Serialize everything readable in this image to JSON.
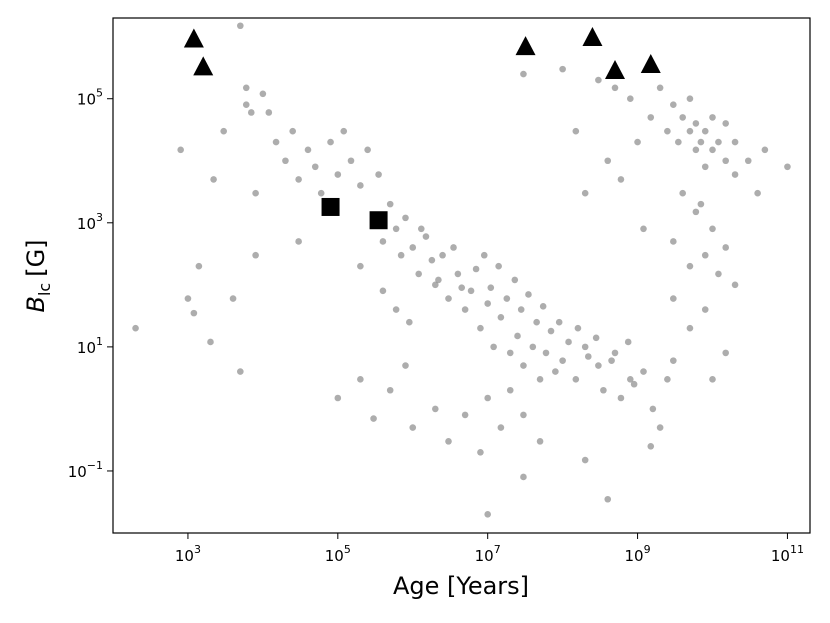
{
  "chart_data": {
    "type": "scatter",
    "title": "",
    "xlabel": "Age [Years]",
    "ylabel": {
      "main": "B",
      "sub": "lc",
      "unit": "[G]"
    },
    "xscale": "log",
    "yscale": "log",
    "xlim": [
      100.0,
      200000000000.0
    ],
    "ylim": [
      0.01,
      2000000.0
    ],
    "xticks": [
      {
        "value": 1000.0,
        "base": "10",
        "exp": "3"
      },
      {
        "value": 100000.0,
        "base": "10",
        "exp": "5"
      },
      {
        "value": 10000000.0,
        "base": "10",
        "exp": "7"
      },
      {
        "value": 1000000000.0,
        "base": "10",
        "exp": "9"
      },
      {
        "value": 100000000000.0,
        "base": "10",
        "exp": "11"
      }
    ],
    "yticks": [
      {
        "value": 0.1,
        "base": "10",
        "exp": "−1"
      },
      {
        "value": 10.0,
        "base": "10",
        "exp": "1"
      },
      {
        "value": 1000.0,
        "base": "10",
        "exp": "3"
      },
      {
        "value": 100000.0,
        "base": "10",
        "exp": "5"
      }
    ],
    "grid": false,
    "legend": "none",
    "colors": {
      "points": "#8a8a8a",
      "markers": "#000000"
    },
    "series": [
      {
        "marker": "circle",
        "color": "#8a8a8a",
        "points": [
          [
            200.0,
            20
          ],
          [
            800.0,
            15000.0
          ],
          [
            1000.0,
            60
          ],
          [
            1400.0,
            200
          ],
          [
            1200.0,
            35
          ],
          [
            2000.0,
            12
          ],
          [
            2200.0,
            5000.0
          ],
          [
            3000.0,
            30000.0
          ],
          [
            4000.0,
            60
          ],
          [
            5000.0,
            4
          ],
          [
            5000.0,
            1500000.0
          ],
          [
            6000.0,
            80000.0
          ],
          [
            6000.0,
            150000.0
          ],
          [
            7000.0,
            60000.0
          ],
          [
            8000.0,
            3000.0
          ],
          [
            8000.0,
            300
          ],
          [
            10000.0,
            120000.0
          ],
          [
            12000.0,
            60000.0
          ],
          [
            15000.0,
            20000.0
          ],
          [
            20000.0,
            10000.0
          ],
          [
            25000.0,
            30000.0
          ],
          [
            30000.0,
            5000.0
          ],
          [
            30000.0,
            500
          ],
          [
            40000.0,
            15000.0
          ],
          [
            50000.0,
            8000.0
          ],
          [
            60000.0,
            3000.0
          ],
          [
            80000.0,
            20000.0
          ],
          [
            100000.0,
            6000.0
          ],
          [
            120000.0,
            30000.0
          ],
          [
            150000.0,
            10000.0
          ],
          [
            200000.0,
            4000.0
          ],
          [
            250000.0,
            15000.0
          ],
          [
            300000.0,
            1000.0
          ],
          [
            350000.0,
            6000.0
          ],
          [
            400000.0,
            500
          ],
          [
            500000.0,
            2000.0
          ],
          [
            600000.0,
            800
          ],
          [
            700000.0,
            300
          ],
          [
            800000.0,
            1200.0
          ],
          [
            1000000.0,
            400
          ],
          [
            1200000.0,
            150
          ],
          [
            1500000.0,
            600
          ],
          [
            2000000.0,
            100
          ],
          [
            2500000.0,
            300
          ],
          [
            3000000.0,
            60
          ],
          [
            4000000.0,
            150
          ],
          [
            5000000.0,
            40
          ],
          [
            6000000.0,
            80
          ],
          [
            8000000.0,
            20
          ],
          [
            10000000.0,
            50
          ],
          [
            12000000.0,
            10
          ],
          [
            15000000.0,
            30
          ],
          [
            20000000.0,
            8
          ],
          [
            25000000.0,
            15
          ],
          [
            30000000.0,
            5
          ],
          [
            40000000.0,
            10
          ],
          [
            50000000.0,
            3
          ],
          [
            60000000.0,
            8
          ],
          [
            80000000.0,
            4
          ],
          [
            100000000.0,
            6
          ],
          [
            150000000.0,
            3
          ],
          [
            200000000.0,
            10
          ],
          [
            300000000.0,
            5
          ],
          [
            500000000.0,
            8
          ],
          [
            800000000.0,
            3
          ],
          [
            100000.0,
            1.5
          ],
          [
            200000.0,
            3
          ],
          [
            300000.0,
            0.7
          ],
          [
            500000.0,
            2
          ],
          [
            800000.0,
            5
          ],
          [
            1000000.0,
            0.5
          ],
          [
            2000000.0,
            1
          ],
          [
            3000000.0,
            0.3
          ],
          [
            5000000.0,
            0.8
          ],
          [
            8000000.0,
            0.2
          ],
          [
            10000000.0,
            1.5
          ],
          [
            15000000.0,
            0.5
          ],
          [
            20000000.0,
            2
          ],
          [
            30000000.0,
            0.8
          ],
          [
            50000000.0,
            0.3
          ],
          [
            10000000.0,
            0.02
          ],
          [
            30000000.0,
            0.08
          ],
          [
            200000000.0,
            0.15
          ],
          [
            400000000.0,
            0.035
          ],
          [
            1500000000.0,
            0.25
          ],
          [
            200000.0,
            200
          ],
          [
            400000.0,
            80
          ],
          [
            600000.0,
            40
          ],
          [
            900000.0,
            25
          ],
          [
            1300000.0,
            800
          ],
          [
            1800000.0,
            250
          ],
          [
            2200000.0,
            120
          ],
          [
            3500000.0,
            400
          ],
          [
            4500000.0,
            90
          ],
          [
            7000000.0,
            180
          ],
          [
            9000000.0,
            300
          ],
          [
            11000000.0,
            90
          ],
          [
            14000000.0,
            200
          ],
          [
            18000000.0,
            60
          ],
          [
            23000000.0,
            120
          ],
          [
            28000000.0,
            40
          ],
          [
            35000000.0,
            70
          ],
          [
            45000000.0,
            25
          ],
          [
            55000000.0,
            45
          ],
          [
            70000000.0,
            18
          ],
          [
            90000000.0,
            25
          ],
          [
            120000000.0,
            12
          ],
          [
            160000000.0,
            20
          ],
          [
            220000000.0,
            7
          ],
          [
            280000000.0,
            14
          ],
          [
            350000000.0,
            2
          ],
          [
            450000000.0,
            6
          ],
          [
            600000000.0,
            1.5
          ],
          [
            750000000.0,
            12
          ],
          [
            900000000.0,
            2.5
          ],
          [
            1200000000.0,
            4
          ],
          [
            1600000000.0,
            1
          ],
          [
            2000000000.0,
            0.5
          ],
          [
            2500000000.0,
            3
          ],
          [
            3000000000.0,
            6
          ],
          [
            30000000.0,
            250000.0
          ],
          [
            100000000.0,
            300000.0
          ],
          [
            150000000.0,
            30000.0
          ],
          [
            200000000.0,
            3000.0
          ],
          [
            300000000.0,
            200000.0
          ],
          [
            400000000.0,
            10000.0
          ],
          [
            500000000.0,
            150000.0
          ],
          [
            600000000.0,
            5000.0
          ],
          [
            800000000.0,
            100000.0
          ],
          [
            1000000000.0,
            20000.0
          ],
          [
            1200000000.0,
            800
          ],
          [
            1500000000.0,
            50000.0
          ],
          [
            2000000000.0,
            150000.0
          ],
          [
            2500000000.0,
            30000.0
          ],
          [
            3000000000.0,
            80000.0
          ],
          [
            3500000000.0,
            20000.0
          ],
          [
            4000000000.0,
            50000.0
          ],
          [
            5000000000.0,
            100000.0
          ],
          [
            5000000000.0,
            30000.0
          ],
          [
            6000000000.0,
            15000.0
          ],
          [
            6000000000.0,
            40000.0
          ],
          [
            7000000000.0,
            20000.0
          ],
          [
            8000000000.0,
            8000.0
          ],
          [
            8000000000.0,
            30000.0
          ],
          [
            10000000000.0,
            15000.0
          ],
          [
            10000000000.0,
            50000.0
          ],
          [
            12000000000.0,
            20000.0
          ],
          [
            15000000000.0,
            10000.0
          ],
          [
            15000000000.0,
            40000.0
          ],
          [
            20000000000.0,
            20000.0
          ],
          [
            20000000000.0,
            6000.0
          ],
          [
            30000000000.0,
            10000.0
          ],
          [
            40000000000.0,
            3000.0
          ],
          [
            50000000000.0,
            15000.0
          ],
          [
            100000000000.0,
            8000.0
          ],
          [
            3000000000.0,
            500
          ],
          [
            5000000000.0,
            200
          ],
          [
            6000000000.0,
            1500.0
          ],
          [
            8000000000.0,
            300
          ],
          [
            10000000000.0,
            800
          ],
          [
            12000000000.0,
            150
          ],
          [
            15000000000.0,
            400
          ],
          [
            20000000000.0,
            100
          ],
          [
            3000000000.0,
            60
          ],
          [
            5000000000.0,
            20
          ],
          [
            8000000000.0,
            40
          ],
          [
            10000000000.0,
            3
          ],
          [
            15000000000.0,
            8
          ],
          [
            4000000000.0,
            3000.0
          ],
          [
            7000000000.0,
            2000.0
          ]
        ]
      },
      {
        "marker": "square",
        "color": "#000000",
        "points": [
          [
            80000.0,
            1800.0
          ],
          [
            350000.0,
            1100.0
          ]
        ]
      },
      {
        "marker": "triangle",
        "color": "#000000",
        "points": [
          [
            1200.0,
            900000.0
          ],
          [
            1600.0,
            320000.0
          ],
          [
            32000000.0,
            680000.0
          ],
          [
            250000000.0,
            950000.0
          ],
          [
            500000000.0,
            280000.0
          ],
          [
            1500000000.0,
            350000.0
          ]
        ]
      }
    ]
  }
}
